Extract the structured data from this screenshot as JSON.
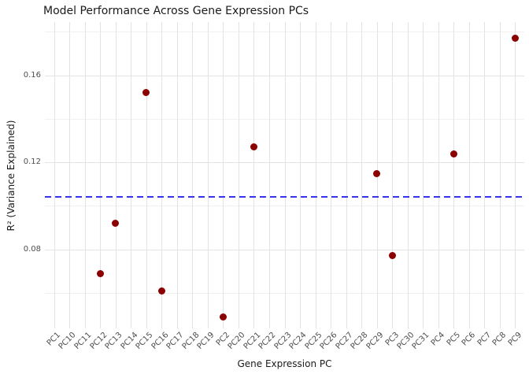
{
  "chart_data": {
    "type": "scatter",
    "title": "Model Performance Across Gene Expression PCs",
    "xlabel": "Gene Expression PC",
    "ylabel": "R² (Variance Explained)",
    "categories": [
      "PC1",
      "PC10",
      "PC11",
      "PC12",
      "PC13",
      "PC14",
      "PC15",
      "PC16",
      "PC17",
      "PC18",
      "PC19",
      "PC2",
      "PC20",
      "PC21",
      "PC22",
      "PC23",
      "PC24",
      "PC25",
      "PC26",
      "PC27",
      "PC28",
      "PC29",
      "PC3",
      "PC30",
      "PC31",
      "PC4",
      "PC5",
      "PC6",
      "PC7",
      "PC8",
      "PC9"
    ],
    "points": [
      {
        "category": "PC12",
        "value": 0.069
      },
      {
        "category": "PC13",
        "value": 0.092
      },
      {
        "category": "PC15",
        "value": 0.152
      },
      {
        "category": "PC16",
        "value": 0.061
      },
      {
        "category": "PC2",
        "value": 0.049
      },
      {
        "category": "PC21",
        "value": 0.127
      },
      {
        "category": "PC29",
        "value": 0.115
      },
      {
        "category": "PC3",
        "value": 0.077
      },
      {
        "category": "PC5",
        "value": 0.124
      },
      {
        "category": "PC9",
        "value": 0.177
      }
    ],
    "reference_line": {
      "orientation": "horizontal",
      "value": 0.104,
      "style": "dashed",
      "color": "#3434EE"
    },
    "y_major_ticks": [
      {
        "value": 0.08,
        "label": "0.08"
      },
      {
        "value": 0.12,
        "label": "0.12"
      },
      {
        "value": 0.16,
        "label": "0.16"
      }
    ],
    "y_minor_ticks": [
      0.06,
      0.1,
      0.14,
      0.18
    ],
    "ylim": [
      0.0437,
      0.1845
    ],
    "grid": true,
    "legend": "none",
    "point_color": "#8B0000",
    "background_color": "#FFFFFF",
    "grid_major_color": "#E3E3E3",
    "grid_minor_color": "#F1F1F1"
  }
}
